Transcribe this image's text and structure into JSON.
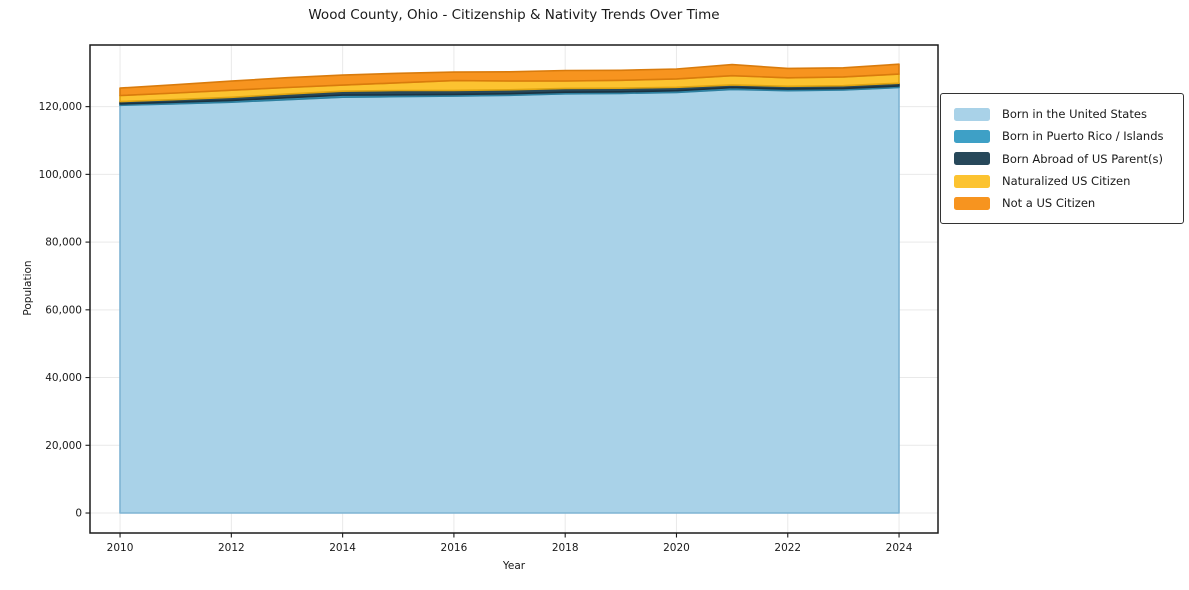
{
  "figure": {
    "background_color": "#ffffff",
    "text_color": "#1a1a1a",
    "grid_color": "#e9e9e9",
    "spine_color": "#1a1a1a"
  },
  "chart_data": {
    "type": "area",
    "stacked": true,
    "title": "Wood County, Ohio - Citizenship & Nativity Trends Over Time",
    "xlabel": "Year",
    "ylabel": "Population",
    "grid": true,
    "legend_position": "right-outside",
    "x": [
      2010,
      2011,
      2012,
      2013,
      2014,
      2015,
      2016,
      2017,
      2018,
      2019,
      2020,
      2021,
      2022,
      2023,
      2024
    ],
    "series": [
      {
        "name": "Born in the United States",
        "color": "#a9d2e8",
        "edge": "#7fb4d3",
        "values": [
          120400,
          120850,
          121300,
          122050,
          122800,
          122950,
          123100,
          123350,
          123800,
          123900,
          124200,
          125100,
          124700,
          124900,
          125650
        ]
      },
      {
        "name": "Born in Puerto Rico / Islands",
        "color": "#3ea0c6",
        "edge": "#2e80a0",
        "values": [
          400,
          450,
          550,
          600,
          600,
          550,
          500,
          480,
          470,
          480,
          500,
          520,
          480,
          470,
          450
        ]
      },
      {
        "name": "Born Abroad of US Parent(s)",
        "color": "#27485a",
        "edge": "#1b3240",
        "values": [
          680,
          780,
          900,
          1050,
          1150,
          1250,
          1200,
          1150,
          1100,
          1050,
          1000,
          800,
          820,
          800,
          820
        ]
      },
      {
        "name": "Naturalized US Citizen",
        "color": "#fcc330",
        "edge": "#dfa411",
        "values": [
          1800,
          1950,
          2100,
          1950,
          1800,
          2300,
          2900,
          2600,
          2200,
          2350,
          2500,
          2700,
          2500,
          2600,
          2700
        ]
      },
      {
        "name": "Not a US Citizen",
        "color": "#f7941f",
        "edge": "#d97b0c",
        "values": [
          2200,
          2450,
          2700,
          2900,
          2950,
          2800,
          2500,
          2700,
          3100,
          2950,
          2900,
          3300,
          2800,
          2700,
          2900
        ]
      }
    ],
    "x_ticks": {
      "values": [
        2010,
        2012,
        2014,
        2016,
        2018,
        2020,
        2022,
        2024
      ],
      "labels": [
        "2010",
        "2012",
        "2014",
        "2016",
        "2018",
        "2020",
        "2022",
        "2024"
      ]
    },
    "y_ticks": {
      "values": [
        0,
        20000,
        40000,
        60000,
        80000,
        100000,
        120000
      ],
      "labels": [
        "0",
        "20,000",
        "40,000",
        "60,000",
        "80,000",
        "100,000",
        "120,000"
      ]
    },
    "xlim": [
      2009.46,
      2024.7
    ],
    "ylim": [
      -5900,
      138200
    ]
  }
}
